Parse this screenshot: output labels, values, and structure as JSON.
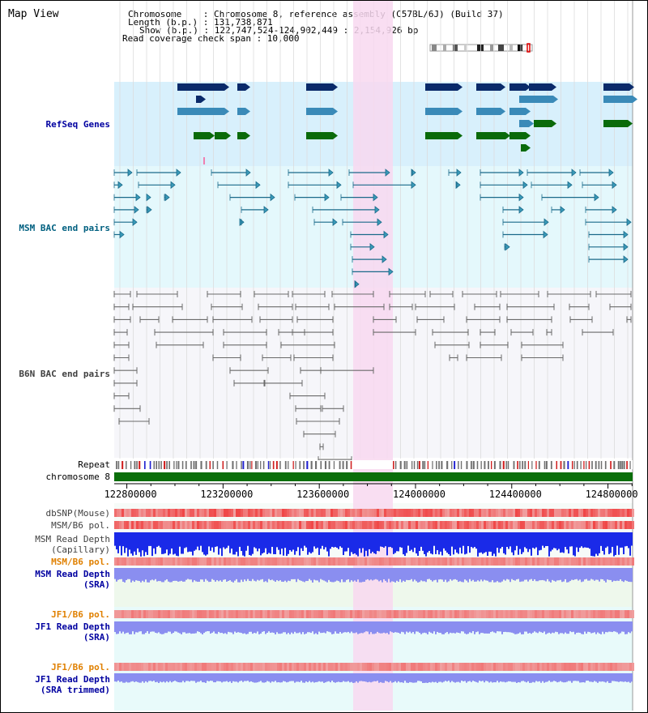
{
  "page": {
    "title": "Map View"
  },
  "info": {
    "chromosome": "Chromosome    : Chromosome 8, reference assembly (C57BL/6J) (Build 37)",
    "length": "Length (b.p.) : 131,738,871",
    "show": "Show (b.p.) : 122,747,524-124,902,449 : 2,154,926 bp",
    "read_coverage": "Read coverage check span : 10,000"
  },
  "tracks": {
    "refseq": {
      "label": "RefSeq Genes",
      "color": "#0000a0"
    },
    "msm_bac": {
      "label": "MSM BAC end pairs",
      "color": "#006080"
    },
    "b6n_bac": {
      "label": "B6N BAC end pairs",
      "color": "#404040"
    },
    "repeat": {
      "label": "Repeat",
      "color": "#000000"
    },
    "chromosome": {
      "label": "chromosome 8",
      "color": "#000000"
    },
    "dbsnp": {
      "label": "dbSNP(Mouse)",
      "color": "#404040"
    },
    "msm_b6_pol": {
      "label": "MSM/B6 pol.",
      "color": "#404040"
    },
    "msm_read_depth_cap": {
      "label": "MSM Read Depth\n(Capillary)",
      "color": "#404040"
    },
    "msm_b6_pol_sra": {
      "label": "MSM/B6 pol.",
      "color": "#e08000"
    },
    "msm_read_depth_sra": {
      "label": "MSM Read Depth\n(SRA)",
      "color": "#0000a0"
    },
    "jf1_b6_pol": {
      "label": "JF1/B6 pol.",
      "color": "#e08000"
    },
    "jf1_read_depth_sra": {
      "label": "JF1 Read Depth\n(SRA)",
      "color": "#0000a0"
    },
    "jf1_b6_pol_trim": {
      "label": "JF1/B6 pol.",
      "color": "#e08000"
    },
    "jf1_read_depth_trim": {
      "label": "JF1 Read Depth\n(SRA trimmed)",
      "color": "#0000a0"
    }
  },
  "axis": {
    "ticks": [
      "122800000",
      "123200000",
      "123600000",
      "124000000",
      "124400000",
      "124800000"
    ],
    "range_bp": [
      122747524,
      124902449
    ]
  },
  "colors": {
    "highlight": "#f8d8f0",
    "refseq_bg": "#d8f0fc",
    "msm_bg": "#e4f8fc",
    "b6n_bg": "#f6f6fa",
    "chromosome_bar": "#0a6e0a",
    "gene_dark": "#0a2a6a",
    "gene_mid": "#3a8ab8",
    "gene_green": "#0a6a0a",
    "msm_line": "#1a6a8a",
    "b6n_line": "#6a6a6a",
    "read_depth": "#1a2ae8",
    "read_depth_sra": "#8a8ef0",
    "pol": "#f06868"
  }
}
